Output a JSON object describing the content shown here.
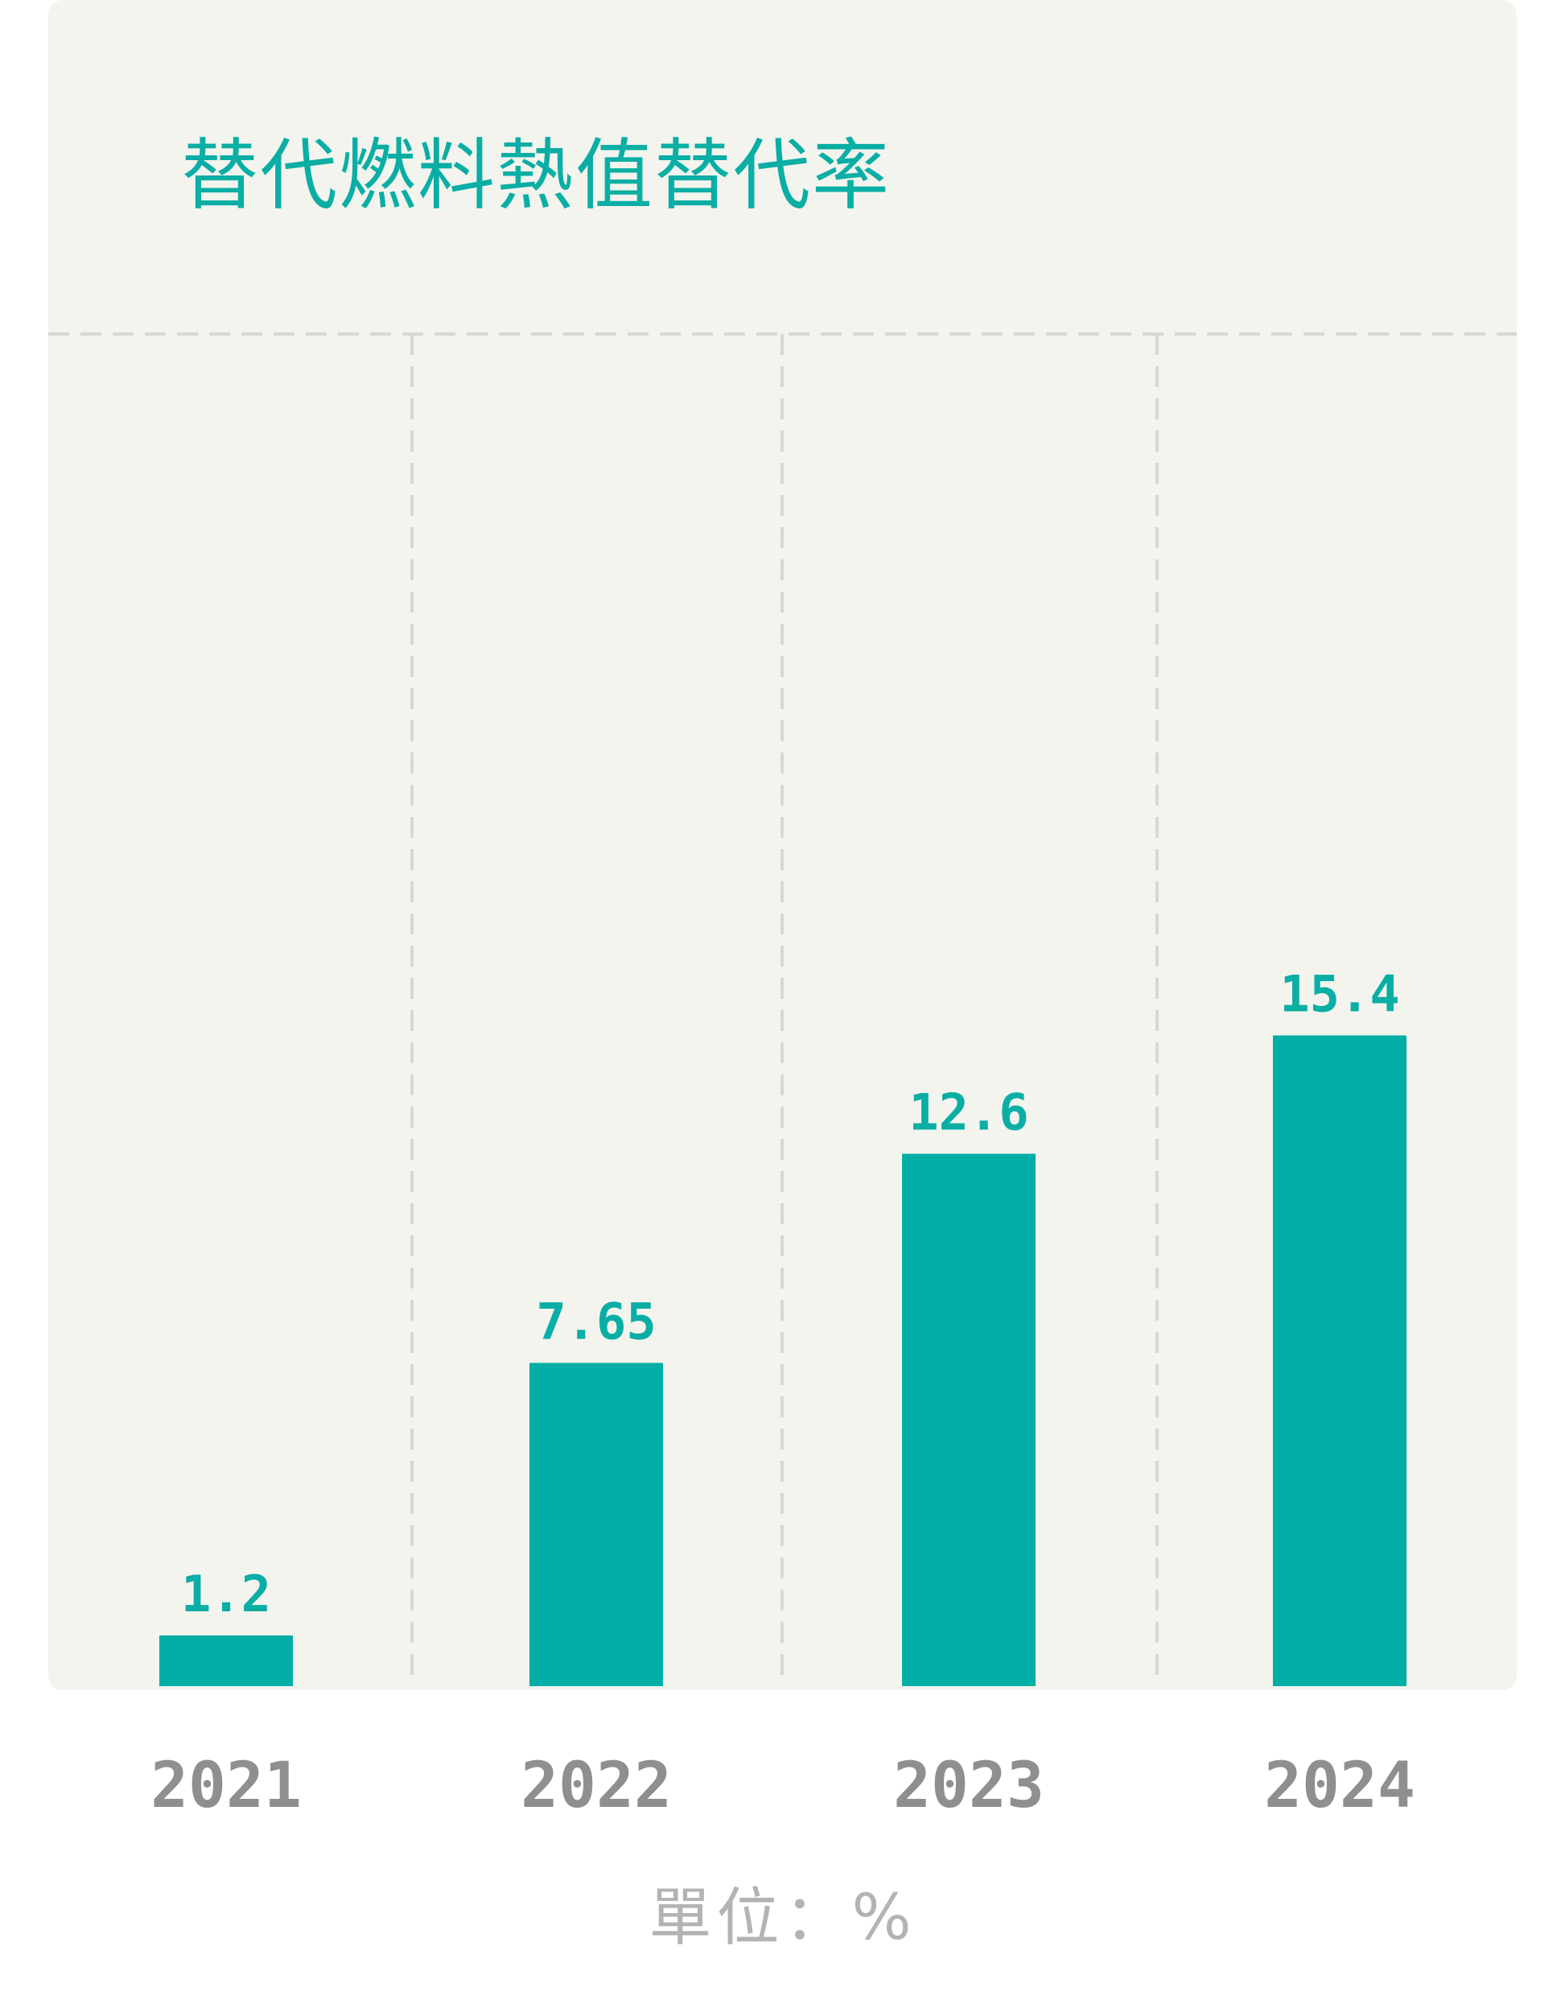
{
  "chart_data": {
    "type": "bar",
    "title": "替代燃料熱值替代率",
    "categories": [
      "2021",
      "2022",
      "2023",
      "2024"
    ],
    "values": [
      1.2,
      7.65,
      12.6,
      15.4
    ],
    "value_labels": [
      "1.2",
      "7.65",
      "12.6",
      "15.4"
    ],
    "unit_label": "單位：%",
    "xlabel": "",
    "ylabel": "",
    "ylim": [
      0,
      32
    ],
    "grid": true,
    "legend": "none"
  },
  "colors": {
    "bar": "#00aea6",
    "title": "#0aaea4",
    "value_label": "#0aaea4",
    "category_label": "#8f8f8f",
    "unit": "#b3b3b3",
    "gridline": "#d6d8d2",
    "panel": "#f3f4ee"
  }
}
